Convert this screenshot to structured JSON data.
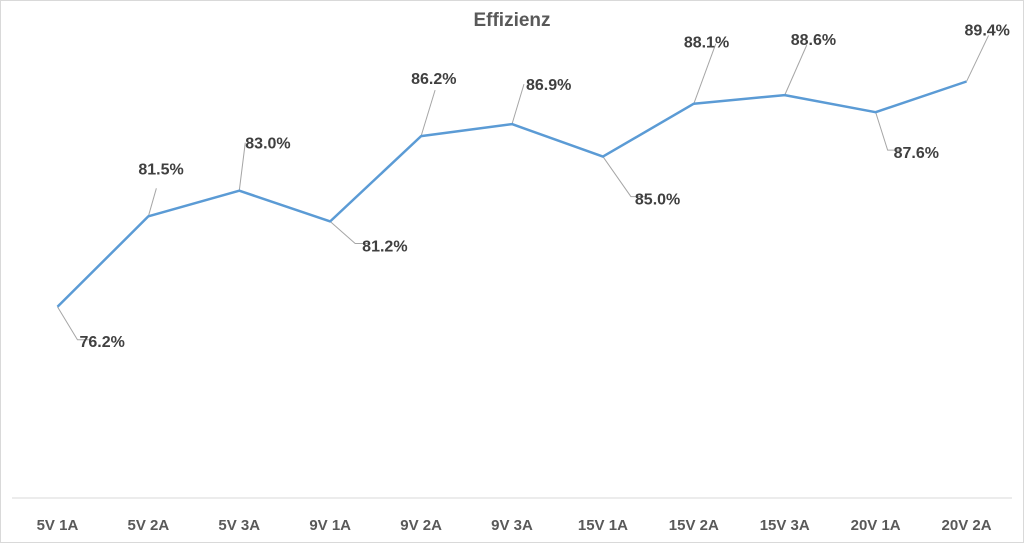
{
  "chart_data": {
    "type": "line",
    "title": "Effizienz",
    "xlabel": "",
    "ylabel": "",
    "categories": [
      "5V 1A",
      "5V 2A",
      "5V 3A",
      "9V 1A",
      "9V 2A",
      "9V 3A",
      "15V 1A",
      "15V 2A",
      "15V 3A",
      "20V 1A",
      "20V 2A"
    ],
    "series": [
      {
        "values": [
          76.2,
          81.5,
          83.0,
          81.2,
          86.2,
          86.9,
          85.0,
          88.1,
          88.6,
          87.6,
          89.4
        ],
        "labels": [
          "76.2%",
          "81.5%",
          "83.0%",
          "81.2%",
          "86.2%",
          "86.9%",
          "85.0%",
          "88.1%",
          "88.6%",
          "87.6%",
          "89.4%"
        ],
        "color": "#5b9bd5"
      }
    ],
    "ylim": [
      65,
      93
    ],
    "grid": false,
    "legend": "none",
    "value_axis_visible": false,
    "colors": {
      "line": "#5b9bd5",
      "axis": "#d9d9d9",
      "leader": "#a6a6a6",
      "text": "#595959"
    }
  }
}
